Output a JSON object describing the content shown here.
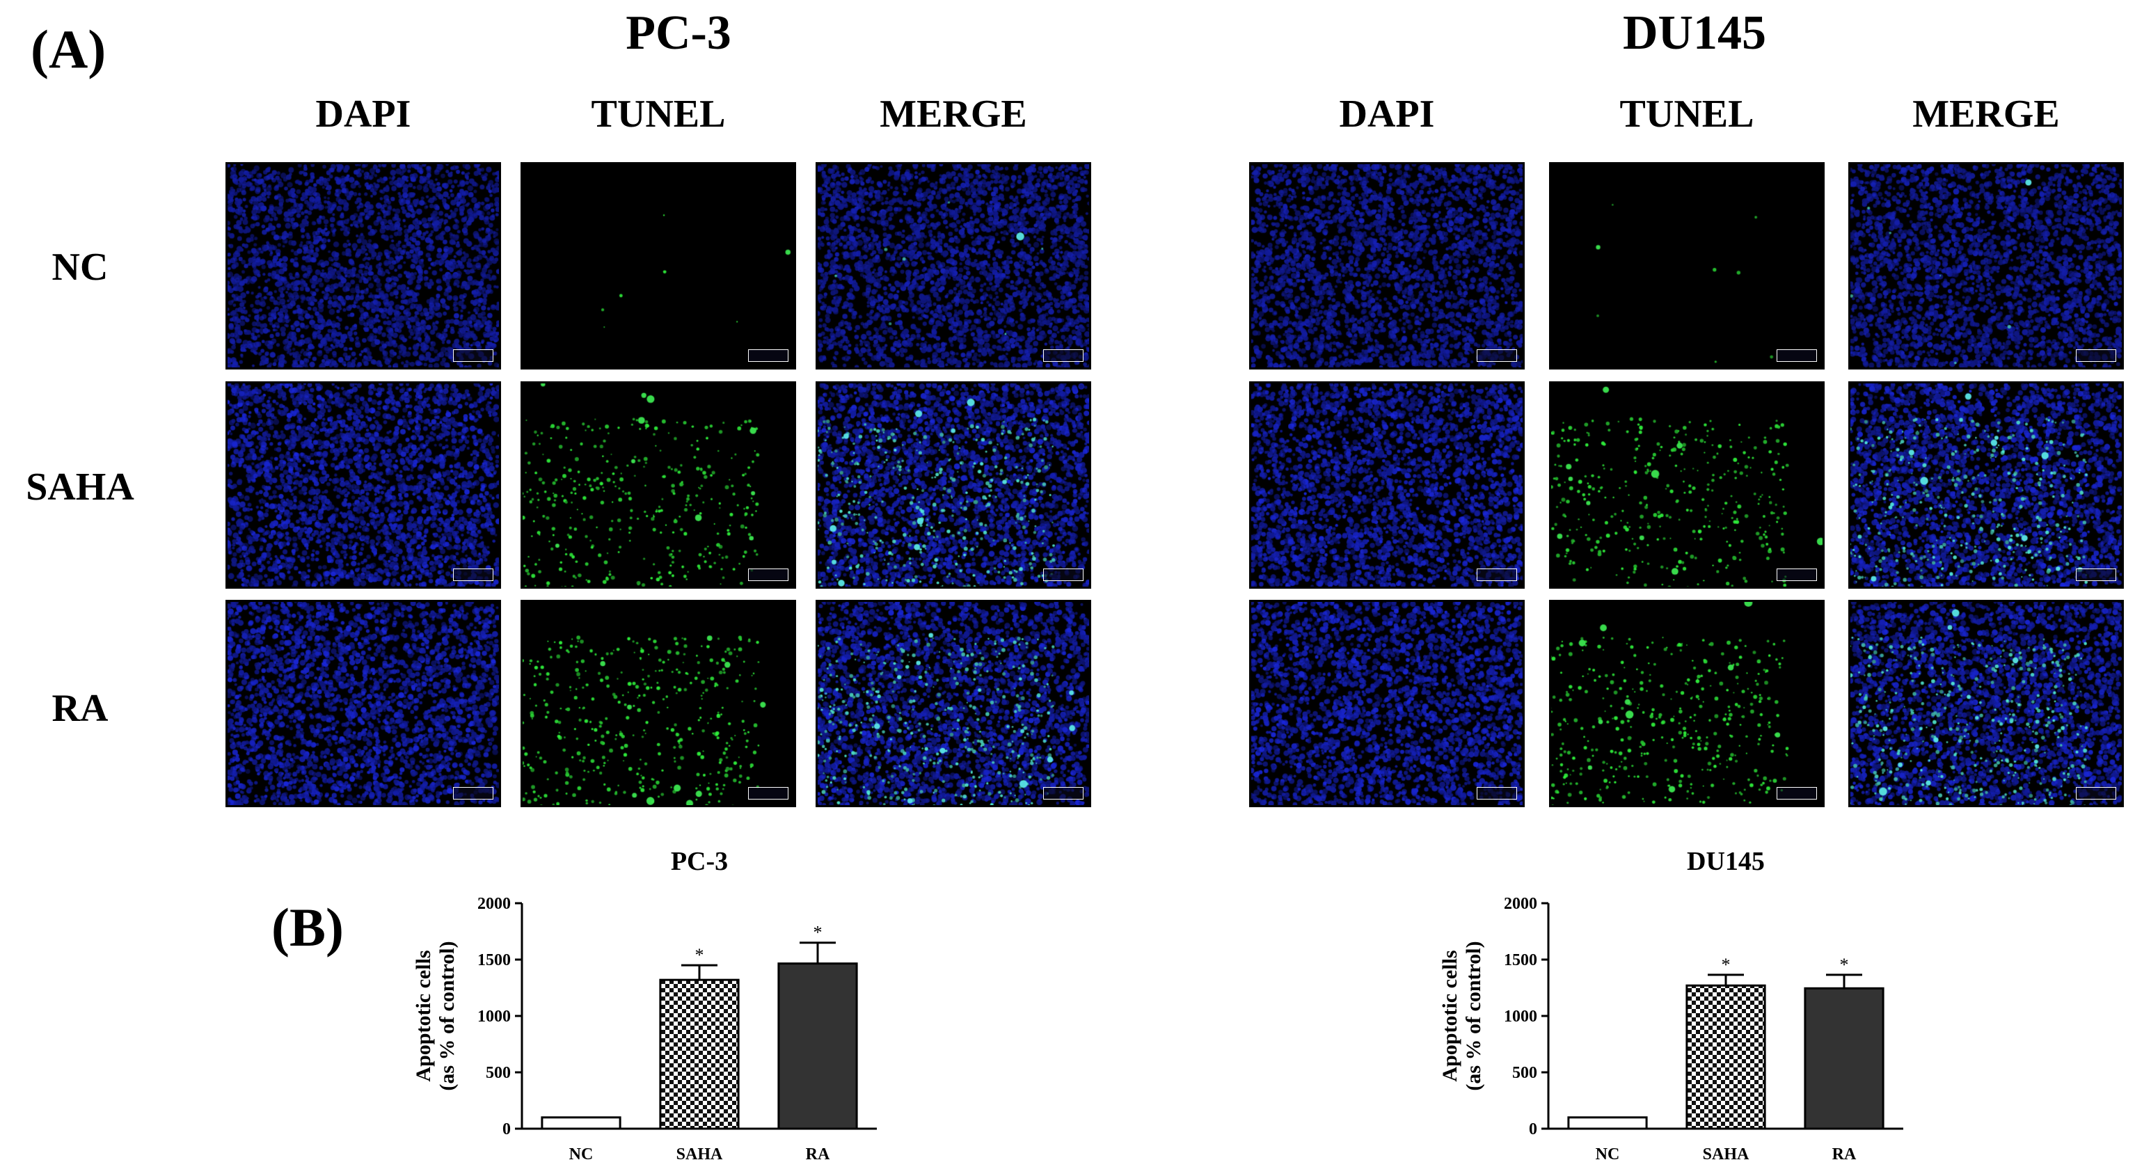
{
  "panel_labels": {
    "a": "(A)",
    "b": "(B)"
  },
  "cell_lines": [
    "PC-3",
    "DU145"
  ],
  "stain_columns": [
    "DAPI",
    "TUNEL",
    "MERGE"
  ],
  "treatment_rows": [
    "NC",
    "SAHA",
    "RA"
  ],
  "micrograph_colors": {
    "dapi": "#1a2cd6",
    "tunel": "#2fd23a",
    "background": "#000000"
  },
  "chart_data": [
    {
      "type": "bar",
      "title": "PC-3",
      "ylabel_line1": "Apoptotic cells",
      "ylabel_line2": "(as % of control)",
      "categories": [
        "NC",
        "SAHA",
        "RA"
      ],
      "values": [
        100,
        1320,
        1465
      ],
      "errors": [
        0,
        130,
        185
      ],
      "significance": [
        "",
        "*",
        "*"
      ],
      "fills": [
        "white",
        "checker",
        "dark"
      ],
      "ylim": [
        0,
        2000
      ],
      "yticks": [
        0,
        500,
        1000,
        1500,
        2000
      ]
    },
    {
      "type": "bar",
      "title": "DU145",
      "ylabel_line1": "Apoptotic cells",
      "ylabel_line2": "(as % of control)",
      "categories": [
        "NC",
        "SAHA",
        "RA"
      ],
      "values": [
        100,
        1270,
        1245
      ],
      "errors": [
        0,
        95,
        120
      ],
      "significance": [
        "",
        "*",
        "*"
      ],
      "fills": [
        "white",
        "checker",
        "dark"
      ],
      "ylim": [
        0,
        2000
      ],
      "yticks": [
        0,
        500,
        1000,
        1500,
        2000
      ]
    }
  ]
}
